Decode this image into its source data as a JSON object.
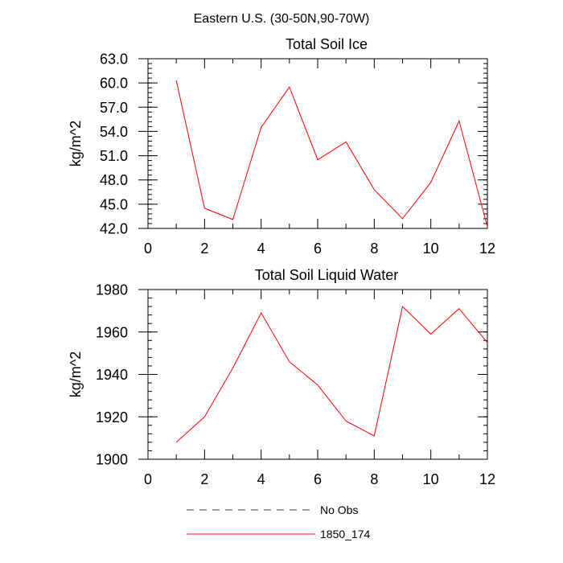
{
  "figure": {
    "title": "Eastern U.S. (30-50N,90-70W)",
    "background": "#ffffff",
    "line_color": "#ff0000",
    "obs_color": "#333399"
  },
  "legend": {
    "entries": [
      {
        "label": "No Obs",
        "color": "#333399",
        "style": "dashed"
      },
      {
        "label": "1850_174",
        "color": "#ff0000",
        "style": "solid"
      }
    ]
  },
  "chart_data": [
    {
      "type": "line",
      "title": "Total Soil Ice",
      "xlabel": "",
      "ylabel": "kg/m^2",
      "xlim": [
        0,
        12
      ],
      "ylim": [
        42,
        63
      ],
      "xticks": [
        0,
        2,
        4,
        6,
        8,
        10,
        12
      ],
      "xtick_labels": [
        "0",
        "2",
        "4",
        "6",
        "8",
        "10",
        "12"
      ],
      "xminor": [
        1,
        3,
        5,
        7,
        9,
        11
      ],
      "yticks": [
        42,
        45,
        48,
        51,
        54,
        57,
        60,
        63
      ],
      "ytick_labels": [
        "42.0",
        "45.0",
        "48.0",
        "51.0",
        "54.0",
        "57.0",
        "60.0",
        "63.0"
      ],
      "yminor_step": 0.6,
      "grid": false,
      "series": [
        {
          "name": "1850_174",
          "color": "#ff0000",
          "x": [
            1,
            2,
            3,
            4,
            5,
            6,
            7,
            8,
            9,
            10,
            11,
            12
          ],
          "values": [
            60.3,
            44.5,
            43.1,
            54.5,
            59.5,
            50.5,
            52.7,
            46.8,
            43.2,
            47.7,
            55.3,
            42.2
          ]
        }
      ]
    },
    {
      "type": "line",
      "title": "Total Soil Liquid Water",
      "xlabel": "",
      "ylabel": "kg/m^2",
      "xlim": [
        0,
        12
      ],
      "ylim": [
        1900,
        1980
      ],
      "xticks": [
        0,
        2,
        4,
        6,
        8,
        10,
        12
      ],
      "xtick_labels": [
        "0",
        "2",
        "4",
        "6",
        "8",
        "10",
        "12"
      ],
      "xminor": [
        1,
        3,
        5,
        7,
        9,
        11
      ],
      "yticks": [
        1900,
        1920,
        1940,
        1960,
        1980
      ],
      "ytick_labels": [
        "1900",
        "1920",
        "1940",
        "1960",
        "1980"
      ],
      "yminor_step": 4,
      "grid": false,
      "series": [
        {
          "name": "1850_174",
          "color": "#ff0000",
          "x": [
            1,
            2,
            3,
            4,
            5,
            6,
            7,
            8,
            9,
            10,
            11,
            12
          ],
          "values": [
            1908,
            1920,
            1943,
            1969,
            1946,
            1935,
            1918,
            1911,
            1972,
            1959,
            1971,
            1955
          ]
        }
      ]
    }
  ]
}
